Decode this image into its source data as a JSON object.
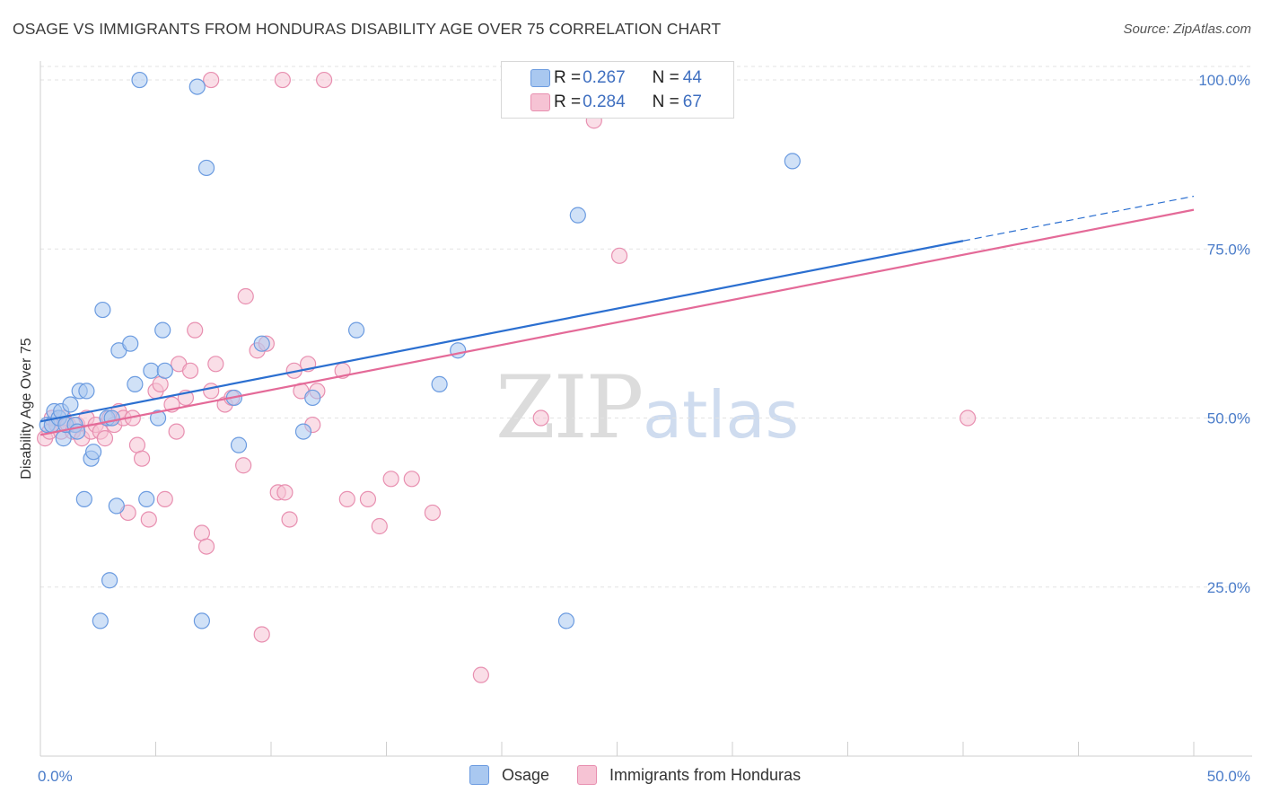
{
  "title": "OSAGE VS IMMIGRANTS FROM HONDURAS DISABILITY AGE OVER 75 CORRELATION CHART",
  "source": "Source: ZipAtlas.com",
  "watermark": {
    "zip": "ZIP",
    "atlas": "atlas"
  },
  "colors": {
    "osage_fill": "#a9c8f0",
    "osage_stroke": "#6b9be0",
    "osage_line": "#2b6fd0",
    "honduras_fill": "#f6c3d4",
    "honduras_stroke": "#e88fb0",
    "honduras_line": "#e46a98",
    "tick": "#4a7cc9",
    "grid": "#e3e3e3"
  },
  "legend_top": [
    {
      "r_label": "R = ",
      "r_value": "0.267",
      "n_label": "N = ",
      "n_value": "44"
    },
    {
      "r_label": "R = ",
      "r_value": "0.284",
      "n_label": "N = ",
      "n_value": "67"
    }
  ],
  "chart_data": {
    "type": "scatter",
    "xlabel": "",
    "ylabel": "Disability Age Over 75",
    "xlim": [
      0,
      50
    ],
    "ylim": [
      0,
      102
    ],
    "x_tick_labels": [
      "0.0%",
      "50.0%"
    ],
    "y_ticks": [
      25,
      50,
      75,
      100
    ],
    "y_tick_labels": [
      "25.0%",
      "50.0%",
      "75.0%",
      "100.0%"
    ],
    "grid": true,
    "legend": "bottom",
    "series": [
      {
        "name": "Osage",
        "trend": {
          "x0": 0,
          "y0": 49.5,
          "x1": 40,
          "y1": 76.2,
          "dash_to_x": 50,
          "dash_to_y": 82.8
        },
        "points": [
          [
            0.3,
            49
          ],
          [
            0.5,
            49
          ],
          [
            0.6,
            51
          ],
          [
            0.8,
            50
          ],
          [
            0.9,
            51
          ],
          [
            1.0,
            47
          ],
          [
            1.1,
            49
          ],
          [
            1.3,
            52
          ],
          [
            1.5,
            49
          ],
          [
            1.6,
            48
          ],
          [
            1.7,
            54
          ],
          [
            1.9,
            38
          ],
          [
            2.0,
            54
          ],
          [
            2.2,
            44
          ],
          [
            2.3,
            45
          ],
          [
            2.6,
            20
          ],
          [
            2.7,
            66
          ],
          [
            2.9,
            50
          ],
          [
            3.0,
            26
          ],
          [
            3.1,
            50
          ],
          [
            3.3,
            37
          ],
          [
            3.4,
            60
          ],
          [
            3.9,
            61
          ],
          [
            4.1,
            55
          ],
          [
            4.3,
            100
          ],
          [
            4.6,
            38
          ],
          [
            4.8,
            57
          ],
          [
            5.1,
            50
          ],
          [
            5.3,
            63
          ],
          [
            5.4,
            57
          ],
          [
            6.8,
            99
          ],
          [
            7.0,
            20
          ],
          [
            7.2,
            87
          ],
          [
            8.4,
            53
          ],
          [
            8.6,
            46
          ],
          [
            9.6,
            61
          ],
          [
            11.4,
            48
          ],
          [
            11.8,
            53
          ],
          [
            13.7,
            63
          ],
          [
            17.3,
            55
          ],
          [
            18.1,
            60
          ],
          [
            22.8,
            20
          ],
          [
            23.3,
            80
          ],
          [
            32.6,
            88
          ]
        ]
      },
      {
        "name": "Immigrants from Honduras",
        "trend": {
          "x0": 0,
          "y0": 47.5,
          "x1": 50,
          "y1": 80.8
        },
        "points": [
          [
            0.2,
            47
          ],
          [
            0.4,
            48
          ],
          [
            0.5,
            50
          ],
          [
            0.7,
            49
          ],
          [
            0.9,
            48
          ],
          [
            1.0,
            50
          ],
          [
            1.2,
            49
          ],
          [
            1.4,
            48
          ],
          [
            1.6,
            49
          ],
          [
            1.8,
            47
          ],
          [
            2.0,
            50
          ],
          [
            2.2,
            48
          ],
          [
            2.4,
            49
          ],
          [
            2.6,
            48
          ],
          [
            2.8,
            47
          ],
          [
            3.0,
            50
          ],
          [
            3.2,
            49
          ],
          [
            3.4,
            51
          ],
          [
            3.6,
            50
          ],
          [
            3.8,
            36
          ],
          [
            4.0,
            50
          ],
          [
            4.2,
            46
          ],
          [
            4.4,
            44
          ],
          [
            4.7,
            35
          ],
          [
            5.0,
            54
          ],
          [
            5.2,
            55
          ],
          [
            5.4,
            38
          ],
          [
            5.7,
            52
          ],
          [
            5.9,
            48
          ],
          [
            6.0,
            58
          ],
          [
            6.3,
            53
          ],
          [
            6.5,
            57
          ],
          [
            6.7,
            63
          ],
          [
            7.0,
            33
          ],
          [
            7.2,
            31
          ],
          [
            7.4,
            54
          ],
          [
            7.6,
            58
          ],
          [
            8.0,
            52
          ],
          [
            8.3,
            53
          ],
          [
            8.8,
            43
          ],
          [
            8.9,
            68
          ],
          [
            9.4,
            60
          ],
          [
            9.6,
            18
          ],
          [
            9.8,
            61
          ],
          [
            10.3,
            39
          ],
          [
            10.6,
            39
          ],
          [
            10.8,
            35
          ],
          [
            11.0,
            57
          ],
          [
            11.3,
            54
          ],
          [
            11.6,
            58
          ],
          [
            11.8,
            49
          ],
          [
            12.0,
            54
          ],
          [
            12.3,
            100
          ],
          [
            13.1,
            57
          ],
          [
            13.3,
            38
          ],
          [
            14.2,
            38
          ],
          [
            14.7,
            34
          ],
          [
            15.2,
            41
          ],
          [
            16.1,
            41
          ],
          [
            17.0,
            36
          ],
          [
            19.1,
            12
          ],
          [
            21.7,
            50
          ],
          [
            24.0,
            94
          ],
          [
            25.1,
            74
          ],
          [
            40.2,
            50
          ],
          [
            7.4,
            100
          ],
          [
            10.5,
            100
          ]
        ]
      }
    ]
  }
}
